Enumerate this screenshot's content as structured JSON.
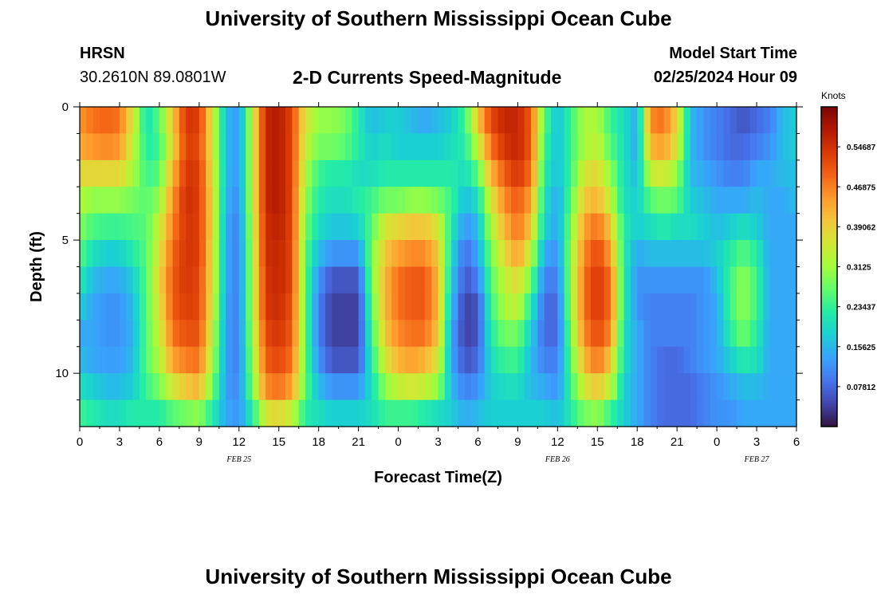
{
  "header": {
    "title": "University of Southern Mississippi Ocean Cube",
    "station": "HRSN",
    "coords": "30.2610N  89.0801W",
    "subtitle": "2-D Currents Speed-Magnitude",
    "model_start_label": "Model Start Time",
    "model_start_value": "02/25/2024 Hour 09"
  },
  "footer": {
    "title": "University of Southern Mississippi Ocean Cube"
  },
  "chart_data": {
    "type": "heatmap",
    "title": "2-D Currents Speed-Magnitude",
    "xlabel": "Forecast Time(Z)",
    "ylabel": "Depth (ft)",
    "x_range_hours": [
      0,
      54
    ],
    "x_ticks": [
      {
        "h": 0,
        "label": "0"
      },
      {
        "h": 3,
        "label": "3"
      },
      {
        "h": 6,
        "label": "6"
      },
      {
        "h": 9,
        "label": "9"
      },
      {
        "h": 12,
        "label": "12"
      },
      {
        "h": 15,
        "label": "15"
      },
      {
        "h": 18,
        "label": "18"
      },
      {
        "h": 21,
        "label": "21"
      },
      {
        "h": 24,
        "label": "0"
      },
      {
        "h": 27,
        "label": "3"
      },
      {
        "h": 30,
        "label": "6"
      },
      {
        "h": 33,
        "label": "9"
      },
      {
        "h": 36,
        "label": "12"
      },
      {
        "h": 39,
        "label": "15"
      },
      {
        "h": 42,
        "label": "18"
      },
      {
        "h": 45,
        "label": "21"
      },
      {
        "h": 48,
        "label": "0"
      },
      {
        "h": 51,
        "label": "3"
      },
      {
        "h": 54,
        "label": "6"
      }
    ],
    "date_labels": [
      {
        "h": 12,
        "label": "FEB 25"
      },
      {
        "h": 36,
        "label": "FEB 26"
      },
      {
        "h": 51,
        "label": "FEB 27"
      }
    ],
    "y_range_ft": [
      0,
      12
    ],
    "y_ticks": [
      0,
      5,
      10
    ],
    "colorbar": {
      "unit": "Knots",
      "min": 0.0,
      "max": 0.625,
      "tick_values": [
        0.07812,
        0.15625,
        0.23437,
        0.3125,
        0.39062,
        0.46875,
        0.54687
      ],
      "tick_labels": [
        "0.07812",
        "0.15625",
        "0.23437",
        "0.3125",
        "0.39062",
        "0.46875",
        "0.54687"
      ],
      "colors": [
        "#30123b",
        "#4145ab",
        "#4675ed",
        "#39a2fc",
        "#1bcfd4",
        "#24eca6",
        "#61fc6c",
        "#a4fc3b",
        "#d1e834",
        "#f3c63a",
        "#fe9b2d",
        "#f36315",
        "#d93806",
        "#b11901",
        "#7a0403"
      ]
    },
    "depth_levels_ft": [
      0.5,
      1.5,
      2.5,
      3.5,
      4.5,
      5.5,
      6.5,
      7.5,
      8.5,
      9.5,
      10.5,
      11.5
    ],
    "time_keyframes_h": [
      0,
      1,
      2,
      3,
      4,
      5,
      6,
      7,
      8,
      9,
      10,
      11,
      12,
      13,
      14,
      15,
      16,
      17,
      18,
      19,
      20,
      21,
      22,
      23,
      24,
      25,
      26,
      27,
      28,
      29,
      30,
      31,
      32,
      33,
      34,
      35,
      36,
      37,
      38,
      39,
      40,
      41,
      42,
      43,
      44,
      45,
      46,
      47,
      48,
      49,
      50,
      51,
      52,
      53,
      54
    ],
    "speed_profiles_knots": [
      [
        0.45,
        0.43,
        0.38,
        0.32,
        0.29,
        0.26,
        0.22,
        0.18,
        0.14,
        0.16,
        0.2,
        0.24
      ],
      [
        0.48,
        0.45,
        0.38,
        0.3,
        0.25,
        0.2,
        0.16,
        0.14,
        0.14,
        0.14,
        0.18,
        0.22
      ],
      [
        0.49,
        0.46,
        0.38,
        0.3,
        0.24,
        0.18,
        0.14,
        0.12,
        0.12,
        0.13,
        0.16,
        0.2
      ],
      [
        0.48,
        0.45,
        0.38,
        0.3,
        0.24,
        0.18,
        0.14,
        0.12,
        0.12,
        0.13,
        0.16,
        0.2
      ],
      [
        0.36,
        0.34,
        0.32,
        0.28,
        0.25,
        0.22,
        0.18,
        0.16,
        0.15,
        0.16,
        0.18,
        0.22
      ],
      [
        0.2,
        0.22,
        0.24,
        0.26,
        0.26,
        0.26,
        0.26,
        0.26,
        0.26,
        0.26,
        0.24,
        0.22
      ],
      [
        0.26,
        0.24,
        0.26,
        0.3,
        0.34,
        0.36,
        0.38,
        0.36,
        0.34,
        0.32,
        0.28,
        0.22
      ],
      [
        0.4,
        0.38,
        0.42,
        0.45,
        0.47,
        0.49,
        0.5,
        0.5,
        0.48,
        0.44,
        0.36,
        0.26
      ],
      [
        0.54,
        0.53,
        0.54,
        0.55,
        0.54,
        0.54,
        0.54,
        0.53,
        0.51,
        0.47,
        0.4,
        0.28
      ],
      [
        0.53,
        0.52,
        0.53,
        0.53,
        0.53,
        0.53,
        0.52,
        0.52,
        0.51,
        0.48,
        0.42,
        0.3
      ],
      [
        0.36,
        0.36,
        0.37,
        0.38,
        0.38,
        0.37,
        0.37,
        0.36,
        0.34,
        0.32,
        0.28,
        0.22
      ],
      [
        0.16,
        0.16,
        0.16,
        0.15,
        0.14,
        0.14,
        0.14,
        0.13,
        0.13,
        0.13,
        0.13,
        0.14
      ],
      [
        0.12,
        0.12,
        0.12,
        0.11,
        0.1,
        0.1,
        0.1,
        0.1,
        0.1,
        0.1,
        0.11,
        0.12
      ],
      [
        0.34,
        0.34,
        0.34,
        0.34,
        0.33,
        0.32,
        0.32,
        0.32,
        0.31,
        0.3,
        0.28,
        0.22
      ],
      [
        0.56,
        0.56,
        0.56,
        0.56,
        0.55,
        0.55,
        0.54,
        0.54,
        0.52,
        0.5,
        0.46,
        0.36
      ],
      [
        0.58,
        0.58,
        0.58,
        0.58,
        0.57,
        0.56,
        0.56,
        0.55,
        0.54,
        0.52,
        0.48,
        0.38
      ],
      [
        0.52,
        0.52,
        0.52,
        0.52,
        0.52,
        0.52,
        0.52,
        0.51,
        0.5,
        0.48,
        0.44,
        0.34
      ],
      [
        0.36,
        0.34,
        0.32,
        0.3,
        0.28,
        0.26,
        0.26,
        0.26,
        0.26,
        0.26,
        0.26,
        0.22
      ],
      [
        0.3,
        0.28,
        0.24,
        0.22,
        0.2,
        0.16,
        0.12,
        0.1,
        0.1,
        0.12,
        0.16,
        0.2
      ],
      [
        0.3,
        0.28,
        0.22,
        0.2,
        0.17,
        0.12,
        0.06,
        0.04,
        0.04,
        0.06,
        0.12,
        0.18
      ],
      [
        0.28,
        0.26,
        0.22,
        0.2,
        0.17,
        0.12,
        0.06,
        0.04,
        0.04,
        0.06,
        0.12,
        0.18
      ],
      [
        0.22,
        0.22,
        0.2,
        0.22,
        0.18,
        0.12,
        0.06,
        0.04,
        0.04,
        0.06,
        0.12,
        0.18
      ],
      [
        0.16,
        0.18,
        0.2,
        0.24,
        0.26,
        0.28,
        0.28,
        0.26,
        0.24,
        0.22,
        0.2,
        0.2
      ],
      [
        0.18,
        0.2,
        0.22,
        0.28,
        0.36,
        0.4,
        0.42,
        0.42,
        0.4,
        0.36,
        0.3,
        0.24
      ],
      [
        0.18,
        0.18,
        0.22,
        0.28,
        0.38,
        0.44,
        0.48,
        0.48,
        0.46,
        0.42,
        0.34,
        0.24
      ],
      [
        0.16,
        0.18,
        0.22,
        0.3,
        0.4,
        0.46,
        0.5,
        0.5,
        0.48,
        0.44,
        0.36,
        0.24
      ],
      [
        0.14,
        0.18,
        0.22,
        0.3,
        0.4,
        0.46,
        0.5,
        0.5,
        0.48,
        0.42,
        0.34,
        0.22
      ],
      [
        0.16,
        0.18,
        0.22,
        0.28,
        0.36,
        0.4,
        0.42,
        0.42,
        0.4,
        0.36,
        0.3,
        0.2
      ],
      [
        0.18,
        0.2,
        0.22,
        0.24,
        0.22,
        0.2,
        0.18,
        0.16,
        0.14,
        0.14,
        0.16,
        0.18
      ],
      [
        0.24,
        0.22,
        0.2,
        0.16,
        0.12,
        0.08,
        0.06,
        0.04,
        0.04,
        0.06,
        0.1,
        0.14
      ],
      [
        0.4,
        0.34,
        0.26,
        0.2,
        0.16,
        0.14,
        0.1,
        0.06,
        0.06,
        0.08,
        0.12,
        0.16
      ],
      [
        0.52,
        0.48,
        0.42,
        0.36,
        0.32,
        0.28,
        0.26,
        0.24,
        0.22,
        0.2,
        0.18,
        0.18
      ],
      [
        0.56,
        0.54,
        0.5,
        0.46,
        0.42,
        0.38,
        0.34,
        0.32,
        0.28,
        0.24,
        0.2,
        0.18
      ],
      [
        0.56,
        0.56,
        0.54,
        0.5,
        0.48,
        0.44,
        0.38,
        0.34,
        0.28,
        0.24,
        0.2,
        0.18
      ],
      [
        0.5,
        0.5,
        0.48,
        0.44,
        0.4,
        0.34,
        0.28,
        0.22,
        0.18,
        0.16,
        0.16,
        0.18
      ],
      [
        0.26,
        0.24,
        0.22,
        0.2,
        0.18,
        0.14,
        0.1,
        0.08,
        0.08,
        0.1,
        0.14,
        0.18
      ],
      [
        0.16,
        0.16,
        0.16,
        0.14,
        0.14,
        0.12,
        0.1,
        0.08,
        0.08,
        0.1,
        0.12,
        0.16
      ],
      [
        0.24,
        0.24,
        0.24,
        0.26,
        0.28,
        0.3,
        0.3,
        0.3,
        0.28,
        0.26,
        0.24,
        0.22
      ],
      [
        0.32,
        0.32,
        0.36,
        0.4,
        0.44,
        0.46,
        0.48,
        0.48,
        0.46,
        0.42,
        0.36,
        0.28
      ],
      [
        0.32,
        0.34,
        0.38,
        0.42,
        0.48,
        0.52,
        0.54,
        0.54,
        0.52,
        0.48,
        0.4,
        0.3
      ],
      [
        0.24,
        0.26,
        0.3,
        0.34,
        0.4,
        0.44,
        0.48,
        0.48,
        0.46,
        0.4,
        0.34,
        0.24
      ],
      [
        0.2,
        0.2,
        0.2,
        0.2,
        0.22,
        0.22,
        0.22,
        0.22,
        0.2,
        0.2,
        0.18,
        0.18
      ],
      [
        0.14,
        0.14,
        0.16,
        0.18,
        0.18,
        0.14,
        0.12,
        0.12,
        0.14,
        0.14,
        0.14,
        0.14
      ],
      [
        0.46,
        0.42,
        0.34,
        0.26,
        0.2,
        0.16,
        0.12,
        0.1,
        0.1,
        0.1,
        0.1,
        0.1
      ],
      [
        0.48,
        0.44,
        0.36,
        0.28,
        0.22,
        0.16,
        0.12,
        0.1,
        0.1,
        0.08,
        0.08,
        0.08
      ],
      [
        0.38,
        0.36,
        0.3,
        0.26,
        0.2,
        0.16,
        0.12,
        0.1,
        0.1,
        0.08,
        0.08,
        0.08
      ],
      [
        0.16,
        0.16,
        0.16,
        0.18,
        0.2,
        0.16,
        0.12,
        0.1,
        0.1,
        0.1,
        0.08,
        0.08
      ],
      [
        0.12,
        0.12,
        0.14,
        0.16,
        0.18,
        0.16,
        0.12,
        0.12,
        0.12,
        0.12,
        0.1,
        0.1
      ],
      [
        0.1,
        0.1,
        0.12,
        0.14,
        0.16,
        0.18,
        0.16,
        0.14,
        0.14,
        0.14,
        0.12,
        0.12
      ],
      [
        0.08,
        0.08,
        0.1,
        0.14,
        0.18,
        0.22,
        0.24,
        0.24,
        0.22,
        0.18,
        0.14,
        0.12
      ],
      [
        0.06,
        0.08,
        0.1,
        0.14,
        0.2,
        0.26,
        0.3,
        0.3,
        0.28,
        0.22,
        0.16,
        0.14
      ],
      [
        0.08,
        0.1,
        0.14,
        0.16,
        0.18,
        0.22,
        0.24,
        0.24,
        0.22,
        0.2,
        0.16,
        0.14
      ],
      [
        0.1,
        0.12,
        0.14,
        0.14,
        0.14,
        0.14,
        0.14,
        0.14,
        0.14,
        0.14,
        0.14,
        0.14
      ],
      [
        0.16,
        0.16,
        0.16,
        0.14,
        0.14,
        0.14,
        0.14,
        0.14,
        0.14,
        0.14,
        0.14,
        0.14
      ],
      [
        0.18,
        0.18,
        0.16,
        0.16,
        0.14,
        0.14,
        0.14,
        0.14,
        0.14,
        0.14,
        0.14,
        0.14
      ]
    ]
  }
}
